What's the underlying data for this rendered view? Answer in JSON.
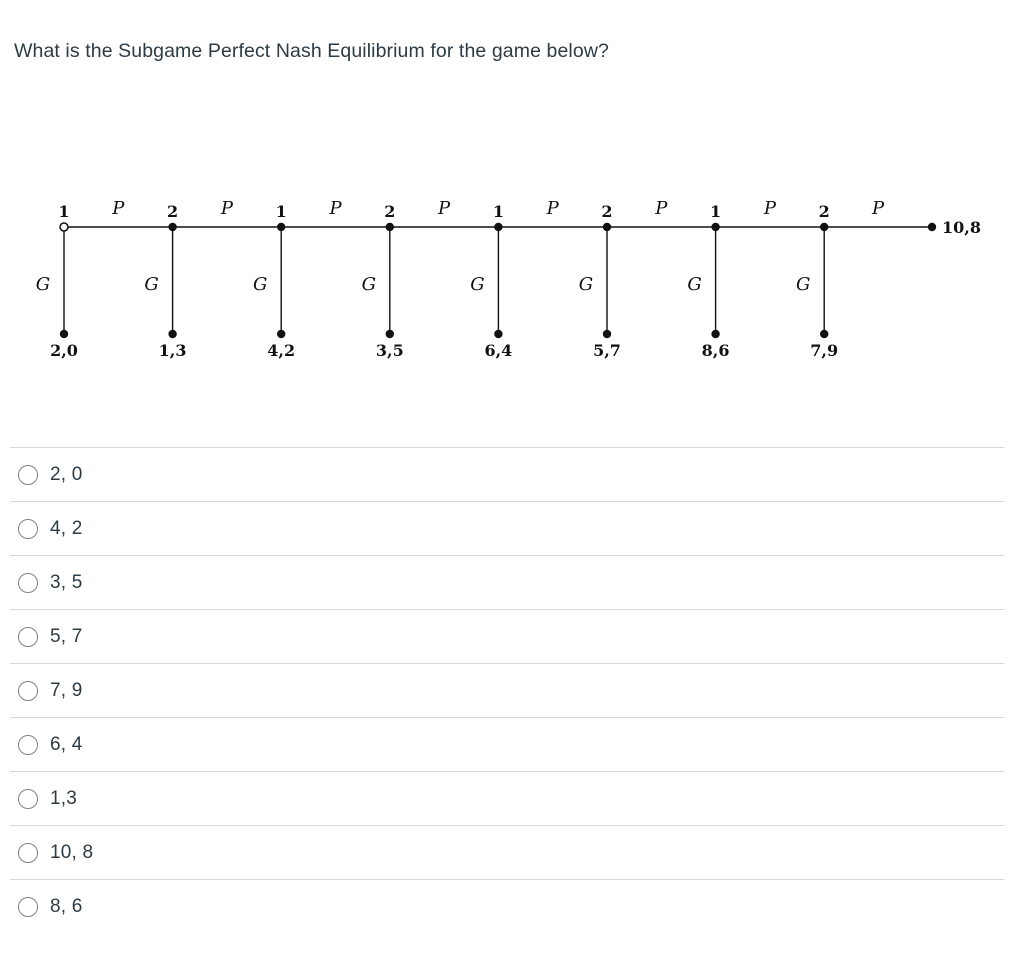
{
  "question": {
    "title": "What is the Subgame Perfect Nash Equilibrium for the game below?"
  },
  "game_tree": {
    "type": "centipede-game-tree",
    "pass_label": "P",
    "grab_label": "G",
    "nodes": [
      {
        "player": "1",
        "grab_payoff": "2,0"
      },
      {
        "player": "2",
        "grab_payoff": "1,3"
      },
      {
        "player": "1",
        "grab_payoff": "4,2"
      },
      {
        "player": "2",
        "grab_payoff": "3,5"
      },
      {
        "player": "1",
        "grab_payoff": "6,4"
      },
      {
        "player": "2",
        "grab_payoff": "5,7"
      },
      {
        "player": "1",
        "grab_payoff": "8,6"
      },
      {
        "player": "2",
        "grab_payoff": "7,9"
      }
    ],
    "terminal_payoff": "10,8"
  },
  "options": [
    {
      "label": "2, 0",
      "selected": false
    },
    {
      "label": "4, 2",
      "selected": false
    },
    {
      "label": "3, 5",
      "selected": false
    },
    {
      "label": "5, 7",
      "selected": false
    },
    {
      "label": "7, 9",
      "selected": false
    },
    {
      "label": "6, 4",
      "selected": false
    },
    {
      "label": "1,3",
      "selected": false
    },
    {
      "label": "10, 8",
      "selected": false
    },
    {
      "label": "8, 6",
      "selected": false
    }
  ],
  "colors": {
    "text": "#2D3B45",
    "diagram": "#111111",
    "divider": "#d8d8d8",
    "radio_border": "#7b8288"
  }
}
